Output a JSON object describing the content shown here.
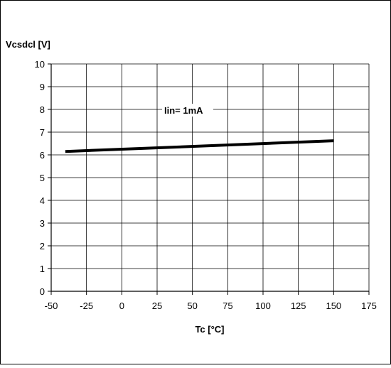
{
  "chart_data": {
    "type": "line",
    "ylabel": "Vcsdcl [V]",
    "xlabel": "Tc [°C]",
    "xlim": [
      -50,
      175
    ],
    "ylim": [
      0,
      10
    ],
    "x_ticks": [
      "-50",
      "-25",
      "0",
      "25",
      "50",
      "75",
      "100",
      "125",
      "150",
      "175"
    ],
    "y_ticks": [
      "0",
      "1",
      "2",
      "3",
      "4",
      "5",
      "6",
      "7",
      "8",
      "9",
      "10"
    ],
    "grid": true,
    "annotation": "Iin= 1mA",
    "series": [
      {
        "x": [
          -40,
          150
        ],
        "y": [
          6.15,
          6.62
        ],
        "color": "#000000"
      }
    ]
  }
}
